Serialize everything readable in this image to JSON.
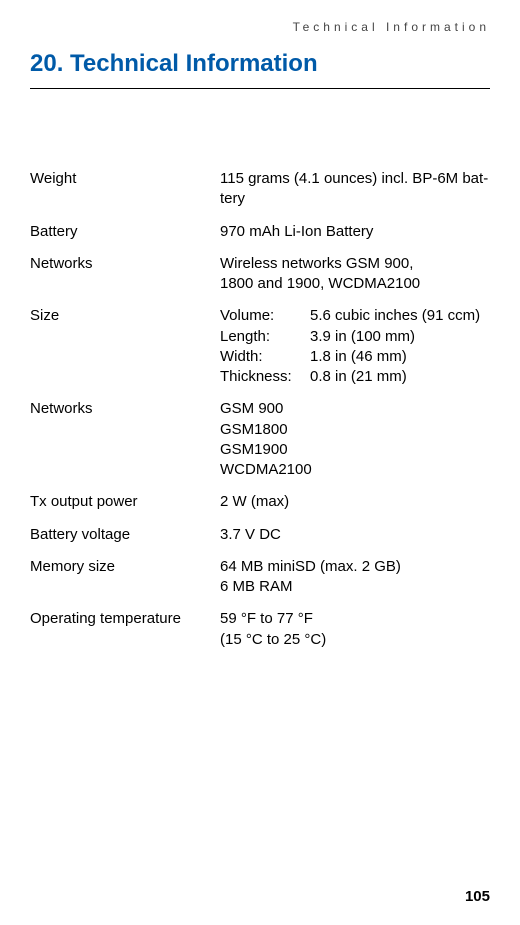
{
  "header": {
    "running_title": "Technical Information"
  },
  "title": "20. Technical Information",
  "specs": {
    "weight": {
      "label": "Weight",
      "value": "115 grams (4.1 ounces) incl. BP-6M bat­tery"
    },
    "battery": {
      "label": "Battery",
      "value": "970 mAh Li-Ion Battery"
    },
    "networks1": {
      "label": "Networks",
      "line1": "Wireless networks GSM 900,",
      "line2": "1800 and 1900, WCDMA2100"
    },
    "size": {
      "label": "Size",
      "volume_label": "Volume:",
      "volume_value": "5.6 cubic inches (91 ccm)",
      "length_label": "Length:",
      "length_value": "3.9 in (100 mm)",
      "width_label": "Width:",
      "width_value": "1.8 in (46 mm)",
      "thickness_label": "Thickness:",
      "thickness_value": "0.8 in (21 mm)"
    },
    "networks2": {
      "label": "Networks",
      "line1": "GSM 900",
      "line2": "GSM1800",
      "line3": "GSM1900",
      "line4": "WCDMA2100"
    },
    "tx": {
      "label": "Tx output power",
      "value": "2 W (max)"
    },
    "voltage": {
      "label": "Battery voltage",
      "value": "3.7 V DC"
    },
    "memory": {
      "label": "Memory size",
      "line1": "64 MB miniSD (max. 2 GB)",
      "line2": "6 MB RAM"
    },
    "temp": {
      "label": "Operating temperature",
      "line1": "59 °F to 77 °F",
      "line2": "(15 °C to 25 °C)"
    }
  },
  "page_number": "105",
  "colors": {
    "title_color": "#005aa8",
    "text_color": "#000000",
    "background": "#ffffff"
  },
  "fonts": {
    "body_family": "Arial, Helvetica, sans-serif",
    "title_size_pt": 18,
    "body_size_pt": 11
  }
}
